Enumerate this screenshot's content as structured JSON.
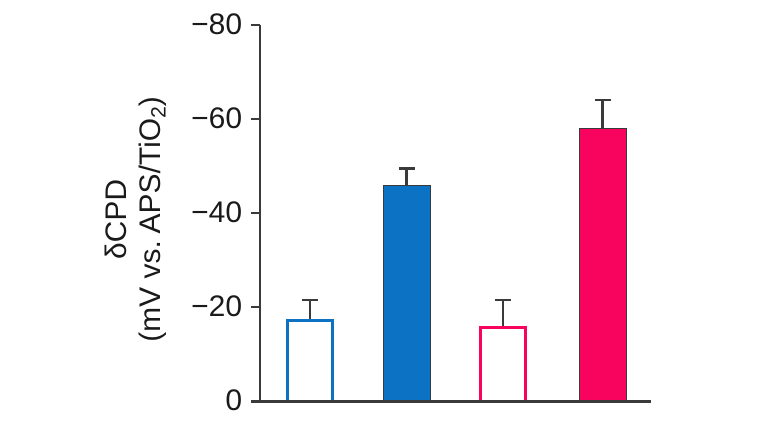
{
  "figure": {
    "background": "#ffffff"
  },
  "chart_data": {
    "type": "bar",
    "title": "",
    "xlabel": "",
    "ylabel": {
      "full_text": "δCPD (mV vs. APS/TiO2)",
      "line1": "δCPD",
      "line2_pre": "(mV vs. APS/TiO",
      "line2_sub": "2",
      "line2_post": ")"
    },
    "ylim": [
      0,
      -80
    ],
    "axis_inverted_negative_up": true,
    "grid": false,
    "legend": "none",
    "yticks": [
      {
        "value": 0,
        "label": "0"
      },
      {
        "value": -20,
        "label": "−20"
      },
      {
        "value": -40,
        "label": "−40"
      },
      {
        "value": -60,
        "label": "−60"
      },
      {
        "value": -80,
        "label": "−80"
      }
    ],
    "categories": [
      "open-blue",
      "solid-blue",
      "open-pink",
      "solid-pink"
    ],
    "values": [
      -17.5,
      -46,
      -16,
      -58
    ],
    "errors": [
      4,
      3.5,
      5.5,
      6
    ],
    "bars": [
      {
        "name": "bar-open-blue",
        "value": -17.5,
        "error": 4,
        "fill": "#ffffff",
        "stroke": "#0b72c4",
        "stroke_width": 3
      },
      {
        "name": "bar-solid-blue",
        "value": -46,
        "error": 3.5,
        "fill": "#0b72c4",
        "stroke": "#3a3a3a",
        "stroke_width": 1.5
      },
      {
        "name": "bar-open-pink",
        "value": -16,
        "error": 5.5,
        "fill": "#ffffff",
        "stroke": "#f8045e",
        "stroke_width": 3
      },
      {
        "name": "bar-solid-pink",
        "value": -58,
        "error": 6,
        "fill": "#f8045e",
        "stroke": "#3a3a3a",
        "stroke_width": 1.5
      }
    ],
    "colors": {
      "blue": "#0b72c4",
      "pink": "#f8045e",
      "axis": "#3a3a3a",
      "text": "#1a1a1a",
      "error_bar": "#3a3a3a"
    }
  }
}
